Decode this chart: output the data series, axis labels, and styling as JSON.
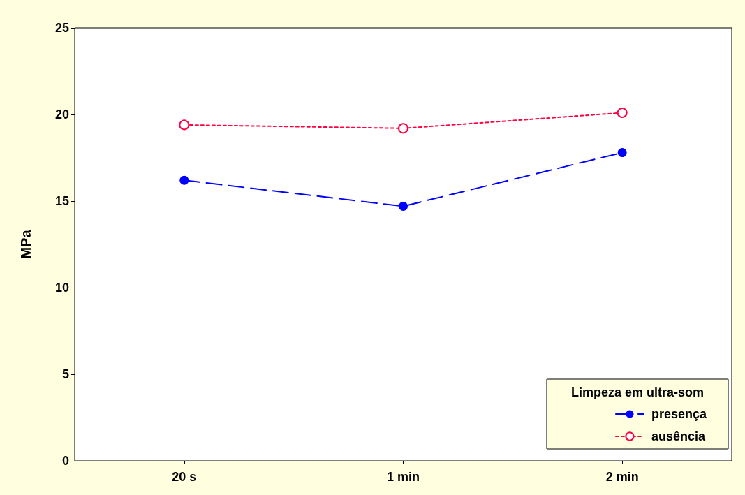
{
  "chart_data": {
    "type": "line",
    "ylabel": "MPa",
    "legend_title": "Limpeza em ultra-som",
    "categories": [
      "20 s",
      "1 min",
      "2 min"
    ],
    "series": [
      {
        "name": "presença",
        "color": "#0000ff",
        "values": [
          16.2,
          14.7,
          17.8
        ],
        "line_style": "dashed",
        "marker": "circle"
      },
      {
        "name": "ausência",
        "color": "#ff0040",
        "values": [
          19.4,
          19.2,
          20.1
        ],
        "line_style": "dotted",
        "marker": "circle"
      }
    ],
    "ylim": [
      0,
      25
    ],
    "yticks": [
      0,
      5,
      10,
      15,
      20,
      25
    ],
    "grid": false,
    "legend": "bottom right"
  }
}
